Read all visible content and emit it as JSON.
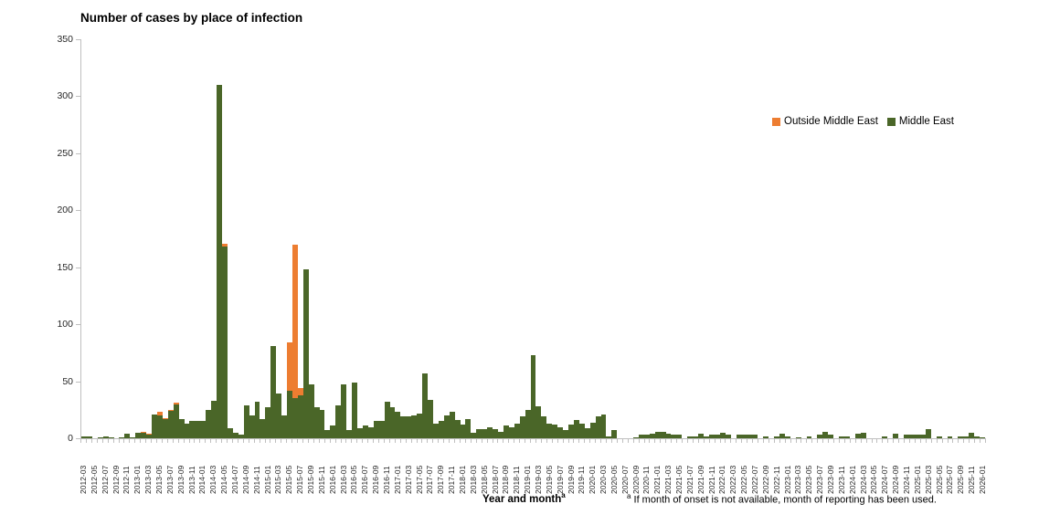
{
  "title": "Number of cases by place of infection",
  "legend_items": [
    {
      "label": "Outside Middle East",
      "color": "#ED7D31"
    },
    {
      "label": "Middle East",
      "color": "#4A6628"
    }
  ],
  "x_axis_title": "Year and month",
  "x_axis_title_sup": "a",
  "footnote_sup": "a",
  "footnote": "If month of onset is not available, month of reporting has been used.",
  "chart_data": {
    "type": "bar",
    "stacked": true,
    "title": "Number of cases by place of infection",
    "xlabel": "Year and month",
    "ylabel": "",
    "ylim": [
      0,
      350
    ],
    "y_ticks": [
      0,
      50,
      100,
      150,
      200,
      250,
      300,
      350
    ],
    "grid": false,
    "legend_position": "right-upper",
    "x_start": "2012-03",
    "x_end": "2026-01",
    "x_tick_labels": [
      "2012-03",
      "2012-05",
      "2012-07",
      "2012-09",
      "2012-11",
      "2013-01",
      "2013-03",
      "2013-05",
      "2013-07",
      "2013-09",
      "2013-11",
      "2014-01",
      "2014-03",
      "2014-05",
      "2014-07",
      "2014-09",
      "2014-11",
      "2015-01",
      "2015-03",
      "2015-05",
      "2015-07",
      "2015-09",
      "2015-11",
      "2016-01",
      "2016-03",
      "2016-05",
      "2016-07",
      "2016-09",
      "2016-11",
      "2017-01",
      "2017-03",
      "2017-05",
      "2017-07",
      "2017-09",
      "2017-11",
      "2018-01",
      "2018-03",
      "2018-05",
      "2018-07",
      "2018-09",
      "2018-11",
      "2019-01",
      "2019-03",
      "2019-05",
      "2019-07",
      "2019-09",
      "2019-11",
      "2020-01",
      "2020-03",
      "2020-05",
      "2020-07",
      "2020-09",
      "2020-11",
      "2021-01",
      "2021-03",
      "2021-05",
      "2021-07",
      "2021-09",
      "2021-11",
      "2022-01",
      "2022-03",
      "2022-05",
      "2022-07",
      "2022-09",
      "2022-11",
      "2023-01",
      "2023-03",
      "2023-05",
      "2023-07",
      "2023-09",
      "2023-11",
      "2024-01",
      "2024-03",
      "2024-05",
      "2024-07",
      "2024-09",
      "2024-11",
      "2025-01",
      "2025-03",
      "2025-05",
      "2025-07",
      "2025-09",
      "2025-11",
      "2026-01"
    ],
    "series": [
      {
        "name": "Middle East",
        "color": "#4A6628",
        "values": [
          2,
          2,
          0,
          1,
          2,
          1,
          0,
          1,
          4,
          1,
          5,
          5,
          3,
          21,
          20,
          17,
          24,
          30,
          17,
          13,
          15,
          15,
          15,
          25,
          33,
          310,
          168,
          9,
          5,
          3,
          29,
          20,
          32,
          17,
          27,
          81,
          39,
          20,
          42,
          35,
          38,
          148,
          47,
          27,
          25,
          7,
          11,
          29,
          47,
          7,
          49,
          9,
          11,
          10,
          15,
          15,
          32,
          27,
          23,
          19,
          19,
          20,
          22,
          57,
          34,
          13,
          15,
          20,
          23,
          16,
          12,
          17,
          5,
          8,
          8,
          10,
          8,
          6,
          11,
          10,
          13,
          19,
          25,
          73,
          28,
          19,
          13,
          12,
          10,
          7,
          12,
          16,
          13,
          9,
          14,
          19,
          21,
          2,
          7,
          0,
          0,
          0,
          1,
          3,
          3,
          4,
          6,
          6,
          4,
          3,
          3,
          0,
          2,
          2,
          4,
          2,
          3,
          3,
          5,
          3,
          0,
          3,
          3,
          3,
          3,
          0,
          2,
          0,
          2,
          4,
          2,
          0,
          1,
          0,
          2,
          0,
          3,
          6,
          3,
          0,
          2,
          2,
          0,
          4,
          5,
          0,
          0,
          0,
          2,
          0,
          4,
          0,
          3,
          3,
          3,
          3,
          8,
          0,
          2,
          0,
          2,
          0,
          2,
          2,
          5,
          2,
          1
        ]
      },
      {
        "name": "Outside Middle East",
        "color": "#ED7D31",
        "values": [
          0,
          0,
          0,
          0,
          0,
          0,
          0,
          0,
          0,
          0,
          0,
          1,
          1,
          0,
          3,
          1,
          1,
          1,
          0,
          0,
          0,
          0,
          0,
          0,
          0,
          0,
          3,
          0,
          0,
          0,
          0,
          0,
          0,
          0,
          0,
          0,
          0,
          0,
          42,
          135,
          6,
          0,
          0,
          0,
          0,
          0,
          0,
          0,
          0,
          0,
          0,
          0,
          0,
          0,
          0,
          0,
          0,
          0,
          0,
          0,
          0,
          0,
          0,
          0,
          0,
          0,
          0,
          0,
          0,
          0,
          0,
          0,
          0,
          0,
          0,
          0,
          0,
          0,
          0,
          0,
          0,
          0,
          0,
          0,
          0,
          0,
          0,
          0,
          0,
          0,
          0,
          0,
          0,
          0,
          0,
          0,
          0,
          0,
          0,
          0,
          0,
          0,
          0,
          0,
          0,
          0,
          0,
          0,
          0,
          0,
          0,
          0,
          0,
          0,
          0,
          0,
          0,
          0,
          0,
          0,
          0,
          0,
          0,
          0,
          0,
          0,
          0,
          0,
          0,
          0,
          0,
          0,
          0,
          0,
          0,
          0,
          0,
          0,
          0,
          0,
          0,
          0,
          0,
          0,
          0,
          0,
          0,
          0,
          0,
          0,
          0,
          0,
          0,
          0,
          0,
          0,
          0,
          0,
          0,
          0,
          0,
          0,
          0,
          0,
          0,
          0,
          0
        ]
      }
    ]
  }
}
